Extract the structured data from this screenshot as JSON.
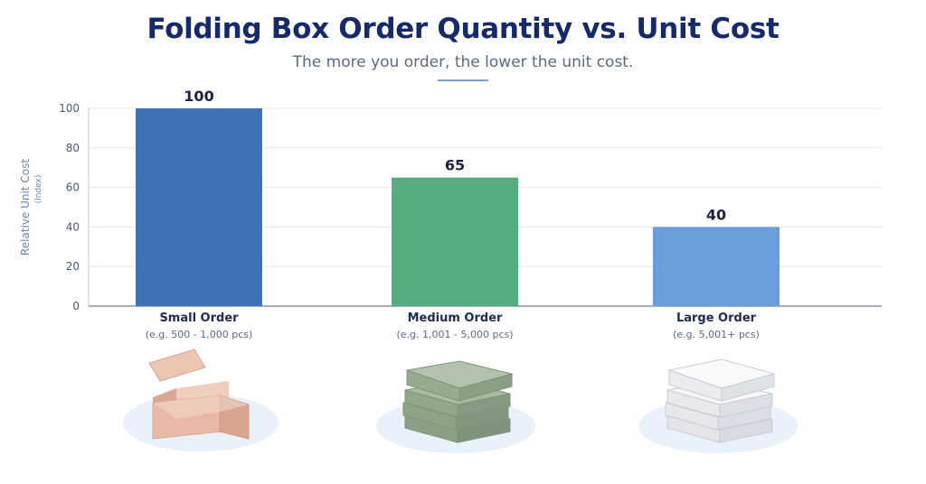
{
  "chart_data": {
    "type": "bar",
    "title": "Folding Box Order Quantity vs. Unit Cost",
    "subtitle": "The more you order, the lower the unit cost.",
    "ylabel": "Relative Unit Cost",
    "ylabel_sub": "(Index)",
    "xlabel": "",
    "ylim": [
      0,
      100
    ],
    "yticks": [
      0,
      20,
      40,
      60,
      80,
      100
    ],
    "grid": true,
    "categories": [
      "Small Order",
      "Medium Order",
      "Large Order"
    ],
    "category_notes": [
      "(e.g. 500 - 1,000 pcs)",
      "(e.g. 1,001 - 5,000 pcs)",
      "(e.g. 5,001+ pcs)"
    ],
    "values": [
      100,
      65,
      40
    ],
    "data_labels": [
      "100",
      "65",
      "40"
    ],
    "colors": [
      "#3f73b6",
      "#54ad7f",
      "#6a9fdc"
    ]
  },
  "illustrations": {
    "icons": [
      "open-kraft-box-icon",
      "stacked-green-boxes-icon",
      "stacked-white-boxes-icon"
    ],
    "box_colors": [
      "#e8b9a6",
      "#9bb095",
      "#eef0f3"
    ]
  }
}
